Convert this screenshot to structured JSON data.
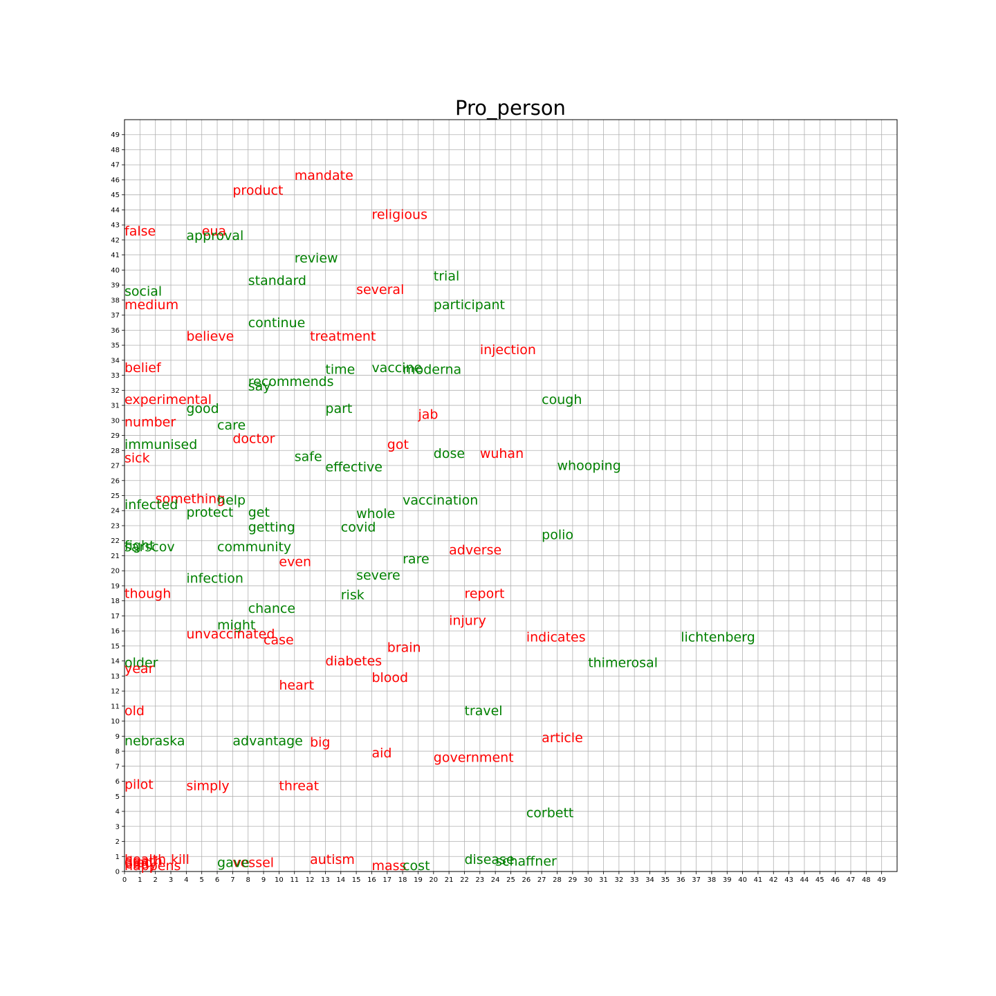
{
  "chart_data": {
    "type": "scatter",
    "title": "Pro_person",
    "xlabel": "",
    "ylabel": "",
    "xlim": [
      0,
      50
    ],
    "ylim": [
      0,
      50
    ],
    "x_ticks": [
      0,
      1,
      2,
      3,
      4,
      5,
      6,
      7,
      8,
      9,
      10,
      11,
      12,
      13,
      14,
      15,
      16,
      17,
      18,
      19,
      20,
      21,
      22,
      23,
      24,
      25,
      26,
      27,
      28,
      29,
      30,
      31,
      32,
      33,
      34,
      35,
      36,
      37,
      38,
      39,
      40,
      41,
      42,
      43,
      44,
      45,
      46,
      47,
      48,
      49
    ],
    "y_ticks": [
      0,
      1,
      2,
      3,
      4,
      5,
      6,
      7,
      8,
      9,
      10,
      11,
      12,
      13,
      14,
      15,
      16,
      17,
      18,
      19,
      20,
      21,
      22,
      23,
      24,
      25,
      26,
      27,
      28,
      29,
      30,
      31,
      32,
      33,
      34,
      35,
      36,
      37,
      38,
      39,
      40,
      41,
      42,
      43,
      44,
      45,
      46,
      47,
      48,
      49
    ],
    "grid": true,
    "colors": {
      "red": "#ff0000",
      "green": "#008000"
    },
    "points": [
      {
        "word": "mandate",
        "x": 11,
        "y": 46,
        "color": "red"
      },
      {
        "word": "product",
        "x": 7,
        "y": 45,
        "color": "red"
      },
      {
        "word": "religious",
        "x": 16,
        "y": 43.4,
        "color": "red"
      },
      {
        "word": "false",
        "x": 0,
        "y": 42.3,
        "color": "red"
      },
      {
        "word": "eua",
        "x": 5,
        "y": 42.3,
        "color": "red"
      },
      {
        "word": "approval",
        "x": 4,
        "y": 42,
        "color": "green"
      },
      {
        "word": "review",
        "x": 11,
        "y": 40.5,
        "color": "green"
      },
      {
        "word": "trial",
        "x": 20,
        "y": 39.3,
        "color": "green"
      },
      {
        "word": "standard",
        "x": 8,
        "y": 39,
        "color": "green"
      },
      {
        "word": "several",
        "x": 15,
        "y": 38.4,
        "color": "red"
      },
      {
        "word": "social",
        "x": 0,
        "y": 38.3,
        "color": "green"
      },
      {
        "word": "medium",
        "x": 0,
        "y": 37.4,
        "color": "red"
      },
      {
        "word": "participant",
        "x": 20,
        "y": 37.4,
        "color": "green"
      },
      {
        "word": "continue",
        "x": 8,
        "y": 36.2,
        "color": "green"
      },
      {
        "word": "believe",
        "x": 4,
        "y": 35.3,
        "color": "red"
      },
      {
        "word": "treatment",
        "x": 12,
        "y": 35.3,
        "color": "red"
      },
      {
        "word": "injection",
        "x": 23,
        "y": 34.4,
        "color": "red"
      },
      {
        "word": "belief",
        "x": 0,
        "y": 33.2,
        "color": "red"
      },
      {
        "word": "vaccine",
        "x": 16,
        "y": 33.2,
        "color": "green"
      },
      {
        "word": "time",
        "x": 13,
        "y": 33.1,
        "color": "green"
      },
      {
        "word": "moderna",
        "x": 18,
        "y": 33.1,
        "color": "green"
      },
      {
        "word": "recommends",
        "x": 8,
        "y": 32.3,
        "color": "green"
      },
      {
        "word": "say",
        "x": 8,
        "y": 32,
        "color": "green"
      },
      {
        "word": "experimental",
        "x": 0,
        "y": 31.1,
        "color": "red"
      },
      {
        "word": "cough",
        "x": 27,
        "y": 31.1,
        "color": "green"
      },
      {
        "word": "good",
        "x": 4,
        "y": 30.5,
        "color": "green"
      },
      {
        "word": "part",
        "x": 13,
        "y": 30.5,
        "color": "green"
      },
      {
        "word": "jab",
        "x": 19,
        "y": 30.1,
        "color": "red"
      },
      {
        "word": "number",
        "x": 0,
        "y": 29.6,
        "color": "red"
      },
      {
        "word": "care",
        "x": 6,
        "y": 29.4,
        "color": "green"
      },
      {
        "word": "doctor",
        "x": 7,
        "y": 28.5,
        "color": "red"
      },
      {
        "word": "immunised",
        "x": 0,
        "y": 28.1,
        "color": "green"
      },
      {
        "word": "got",
        "x": 17,
        "y": 28.1,
        "color": "red"
      },
      {
        "word": "dose",
        "x": 20,
        "y": 27.5,
        "color": "green"
      },
      {
        "word": "wuhan",
        "x": 23,
        "y": 27.5,
        "color": "red"
      },
      {
        "word": "safe",
        "x": 11,
        "y": 27.3,
        "color": "green"
      },
      {
        "word": "sick",
        "x": 0,
        "y": 27.2,
        "color": "red"
      },
      {
        "word": "whooping",
        "x": 28,
        "y": 26.7,
        "color": "green"
      },
      {
        "word": "effective",
        "x": 13,
        "y": 26.6,
        "color": "green"
      },
      {
        "word": "something",
        "x": 2,
        "y": 24.5,
        "color": "red"
      },
      {
        "word": "help",
        "x": 6,
        "y": 24.4,
        "color": "green"
      },
      {
        "word": "vaccination",
        "x": 18,
        "y": 24.4,
        "color": "green"
      },
      {
        "word": "infected",
        "x": 0,
        "y": 24.1,
        "color": "green"
      },
      {
        "word": "protect",
        "x": 4,
        "y": 23.6,
        "color": "green"
      },
      {
        "word": "get",
        "x": 8,
        "y": 23.6,
        "color": "green"
      },
      {
        "word": "whole",
        "x": 15,
        "y": 23.5,
        "color": "green"
      },
      {
        "word": "getting",
        "x": 8,
        "y": 22.6,
        "color": "green"
      },
      {
        "word": "covid",
        "x": 14,
        "y": 22.6,
        "color": "green"
      },
      {
        "word": "polio",
        "x": 27,
        "y": 22.1,
        "color": "green"
      },
      {
        "word": "fight",
        "x": 0,
        "y": 21.4,
        "color": "green"
      },
      {
        "word": "sarscov",
        "x": 0,
        "y": 21.3,
        "color": "green"
      },
      {
        "word": "community",
        "x": 6,
        "y": 21.3,
        "color": "green"
      },
      {
        "word": "adverse",
        "x": 21,
        "y": 21.1,
        "color": "red"
      },
      {
        "word": "rare",
        "x": 18,
        "y": 20.5,
        "color": "green"
      },
      {
        "word": "even",
        "x": 10,
        "y": 20.3,
        "color": "red"
      },
      {
        "word": "severe",
        "x": 15,
        "y": 19.4,
        "color": "green"
      },
      {
        "word": "infection",
        "x": 4,
        "y": 19.2,
        "color": "green"
      },
      {
        "word": "though",
        "x": 0,
        "y": 18.2,
        "color": "red"
      },
      {
        "word": "report",
        "x": 22,
        "y": 18.2,
        "color": "red"
      },
      {
        "word": "risk",
        "x": 14,
        "y": 18.1,
        "color": "green"
      },
      {
        "word": "chance",
        "x": 8,
        "y": 17.2,
        "color": "green"
      },
      {
        "word": "injury",
        "x": 21,
        "y": 16.4,
        "color": "red"
      },
      {
        "word": "might",
        "x": 6,
        "y": 16.1,
        "color": "green"
      },
      {
        "word": "unvaccinated",
        "x": 4,
        "y": 15.5,
        "color": "red"
      },
      {
        "word": "indicates",
        "x": 26,
        "y": 15.3,
        "color": "red"
      },
      {
        "word": "lichtenberg",
        "x": 36,
        "y": 15.3,
        "color": "green"
      },
      {
        "word": "case",
        "x": 9,
        "y": 15.1,
        "color": "red"
      },
      {
        "word": "brain",
        "x": 17,
        "y": 14.6,
        "color": "red"
      },
      {
        "word": "diabetes",
        "x": 13,
        "y": 13.7,
        "color": "red"
      },
      {
        "word": "thimerosal",
        "x": 30,
        "y": 13.6,
        "color": "green"
      },
      {
        "word": "older",
        "x": 0,
        "y": 13.6,
        "color": "green"
      },
      {
        "word": "year",
        "x": 0,
        "y": 13.2,
        "color": "red"
      },
      {
        "word": "blood",
        "x": 16,
        "y": 12.6,
        "color": "red"
      },
      {
        "word": "heart",
        "x": 10,
        "y": 12.1,
        "color": "red"
      },
      {
        "word": "old",
        "x": 0,
        "y": 10.4,
        "color": "red"
      },
      {
        "word": "travel",
        "x": 22,
        "y": 10.4,
        "color": "green"
      },
      {
        "word": "article",
        "x": 27,
        "y": 8.6,
        "color": "red"
      },
      {
        "word": "nebraska",
        "x": 0,
        "y": 8.4,
        "color": "green"
      },
      {
        "word": "advantage",
        "x": 7,
        "y": 8.4,
        "color": "green"
      },
      {
        "word": "big",
        "x": 12,
        "y": 8.3,
        "color": "red"
      },
      {
        "word": "aid",
        "x": 16,
        "y": 7.6,
        "color": "red"
      },
      {
        "word": "government",
        "x": 20,
        "y": 7.3,
        "color": "red"
      },
      {
        "word": "pilot",
        "x": 0,
        "y": 5.5,
        "color": "red"
      },
      {
        "word": "simply",
        "x": 4,
        "y": 5.4,
        "color": "red"
      },
      {
        "word": "threat",
        "x": 10,
        "y": 5.4,
        "color": "red"
      },
      {
        "word": "corbett",
        "x": 26,
        "y": 3.6,
        "color": "green"
      },
      {
        "word": "disease",
        "x": 22,
        "y": 0.5,
        "color": "green"
      },
      {
        "word": "schaffner",
        "x": 24,
        "y": 0.4,
        "color": "green"
      },
      {
        "word": "autism",
        "x": 12,
        "y": 0.5,
        "color": "red"
      },
      {
        "word": "kill",
        "x": 3,
        "y": 0.5,
        "color": "red"
      },
      {
        "word": "vessel",
        "x": 7,
        "y": 0.3,
        "color": "red"
      },
      {
        "word": "gave",
        "x": 6,
        "y": 0.3,
        "color": "green"
      },
      {
        "word": "mass",
        "x": 16,
        "y": 0.1,
        "color": "red"
      },
      {
        "word": "cost",
        "x": 18,
        "y": 0.1,
        "color": "green"
      },
      {
        "word": "health",
        "x": 0,
        "y": 0.5,
        "color": "red"
      },
      {
        "word": "death",
        "x": 0,
        "y": 0.4,
        "color": "red"
      },
      {
        "word": "died",
        "x": 0,
        "y": 0.3,
        "color": "red"
      },
      {
        "word": "body",
        "x": 0,
        "y": 0.2,
        "color": "red"
      },
      {
        "word": "happens",
        "x": 0,
        "y": 0.1,
        "color": "red"
      }
    ]
  }
}
